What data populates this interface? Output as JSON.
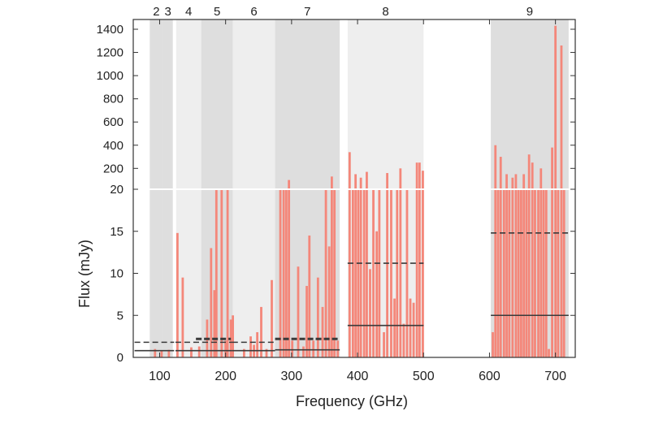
{
  "chart_data": {
    "type": "bar",
    "xlabel": "Frequency (GHz)",
    "ylabel": "Flux (mJy)",
    "x_ticks": [
      100,
      200,
      300,
      400,
      500,
      600,
      700
    ],
    "xlim": [
      60,
      730
    ],
    "y_axis": {
      "scale": "broken-linear",
      "lower_ticks": [
        0,
        5,
        10,
        15,
        20
      ],
      "upper_ticks": [
        200,
        400,
        600,
        800,
        1000,
        1200,
        1400
      ],
      "break_value": 20,
      "upper_range": [
        20,
        1450
      ]
    },
    "bands": [
      {
        "label": "2",
        "range": [
          85,
          105
        ],
        "shade": "dark"
      },
      {
        "label": "3",
        "range": [
          105,
          120
        ],
        "shade": "dark"
      },
      {
        "label": "4",
        "range": [
          125,
          163
        ],
        "shade": "light"
      },
      {
        "label": "5",
        "range": [
          163,
          211
        ],
        "shade": "dark"
      },
      {
        "label": "6",
        "range": [
          211,
          275
        ],
        "shade": "light"
      },
      {
        "label": "7",
        "range": [
          275,
          373
        ],
        "shade": "dark"
      },
      {
        "label": "8",
        "range": [
          385,
          500
        ],
        "shade": "light"
      },
      {
        "label": "9",
        "range": [
          602,
          720
        ],
        "shade": "dark"
      }
    ],
    "grid": false,
    "bar_color": "#f4877a",
    "band_colors": {
      "dark": "#dedede",
      "light": "#eeeeee"
    },
    "line_color": "#3a3a3a",
    "lines": [
      {
        "range": [
          62,
          122
        ],
        "value": 0.8,
        "style": "solid"
      },
      {
        "range": [
          62,
          122
        ],
        "value": 1.8,
        "style": "dashed"
      },
      {
        "range": [
          124,
          210
        ],
        "value": 0.8,
        "style": "solid"
      },
      {
        "range": [
          124,
          210
        ],
        "value": 1.8,
        "style": "dashed"
      },
      {
        "range": [
          155,
          208
        ],
        "value": 2.2,
        "style": "dashed-thick"
      },
      {
        "range": [
          210,
          275
        ],
        "value": 0.8,
        "style": "solid"
      },
      {
        "range": [
          210,
          275
        ],
        "value": 1.8,
        "style": "dashed"
      },
      {
        "range": [
          275,
          373
        ],
        "value": 0.9,
        "style": "solid"
      },
      {
        "range": [
          275,
          373
        ],
        "value": 2.2,
        "style": "dashed-thick"
      },
      {
        "range": [
          385,
          500
        ],
        "value": 3.8,
        "style": "solid"
      },
      {
        "range": [
          385,
          500
        ],
        "value": 11.2,
        "style": "dashed"
      },
      {
        "range": [
          602,
          720
        ],
        "value": 5.0,
        "style": "solid"
      },
      {
        "range": [
          602,
          720
        ],
        "value": 14.8,
        "style": "dashed"
      }
    ],
    "bars": [
      {
        "x": 93,
        "value": 1.0
      },
      {
        "x": 103,
        "value": 0.8
      },
      {
        "x": 114,
        "value": 0.9
      },
      {
        "x": 127,
        "value": 14.8
      },
      {
        "x": 135,
        "value": 9.5
      },
      {
        "x": 148,
        "value": 1.2
      },
      {
        "x": 160,
        "value": 1.3
      },
      {
        "x": 172,
        "value": 4.5
      },
      {
        "x": 178,
        "value": 13.0
      },
      {
        "x": 183,
        "value": 8.0
      },
      {
        "x": 186,
        "value": 20.0
      },
      {
        "x": 194,
        "value": 20.0
      },
      {
        "x": 200,
        "value": 2.0
      },
      {
        "x": 203,
        "value": 20.0
      },
      {
        "x": 208,
        "value": 4.5
      },
      {
        "x": 211,
        "value": 5.0
      },
      {
        "x": 228,
        "value": 1.0
      },
      {
        "x": 238,
        "value": 2.5
      },
      {
        "x": 243,
        "value": 1.5
      },
      {
        "x": 248,
        "value": 3.0
      },
      {
        "x": 254,
        "value": 6.0
      },
      {
        "x": 262,
        "value": 1.0
      },
      {
        "x": 270,
        "value": 9.2
      },
      {
        "x": 283,
        "value": 20.0
      },
      {
        "x": 288,
        "value": 20.0
      },
      {
        "x": 292,
        "value": 20.0
      },
      {
        "x": 296,
        "value": 100
      },
      {
        "x": 301,
        "value": 2.0
      },
      {
        "x": 310,
        "value": 10.8
      },
      {
        "x": 318,
        "value": 1.3
      },
      {
        "x": 323,
        "value": 8.5
      },
      {
        "x": 327,
        "value": 14.5
      },
      {
        "x": 333,
        "value": 2.0
      },
      {
        "x": 340,
        "value": 9.5
      },
      {
        "x": 347,
        "value": 6.0
      },
      {
        "x": 352,
        "value": 20.0
      },
      {
        "x": 357,
        "value": 13.2
      },
      {
        "x": 361,
        "value": 130
      },
      {
        "x": 365,
        "value": 20.0
      },
      {
        "x": 370,
        "value": 2.0
      },
      {
        "x": 388,
        "value": 340
      },
      {
        "x": 393,
        "value": 20.0
      },
      {
        "x": 397,
        "value": 150
      },
      {
        "x": 401,
        "value": 20.0
      },
      {
        "x": 405,
        "value": 120
      },
      {
        "x": 410,
        "value": 20.0
      },
      {
        "x": 414,
        "value": 170
      },
      {
        "x": 419,
        "value": 10.5
      },
      {
        "x": 424,
        "value": 20.0
      },
      {
        "x": 429,
        "value": 15.0
      },
      {
        "x": 433,
        "value": 20.0
      },
      {
        "x": 440,
        "value": 3.0
      },
      {
        "x": 445,
        "value": 160
      },
      {
        "x": 451,
        "value": 20.0
      },
      {
        "x": 456,
        "value": 7.0
      },
      {
        "x": 460,
        "value": 20.0
      },
      {
        "x": 465,
        "value": 200
      },
      {
        "x": 470,
        "value": 4.0
      },
      {
        "x": 475,
        "value": 20.0
      },
      {
        "x": 480,
        "value": 7.0
      },
      {
        "x": 485,
        "value": 6.5
      },
      {
        "x": 490,
        "value": 250
      },
      {
        "x": 494,
        "value": 250
      },
      {
        "x": 499,
        "value": 180
      },
      {
        "x": 605,
        "value": 3.0
      },
      {
        "x": 609,
        "value": 400
      },
      {
        "x": 613,
        "value": 20.0
      },
      {
        "x": 617,
        "value": 300
      },
      {
        "x": 622,
        "value": 20.0
      },
      {
        "x": 626,
        "value": 150
      },
      {
        "x": 630,
        "value": 20.0
      },
      {
        "x": 635,
        "value": 120
      },
      {
        "x": 640,
        "value": 150
      },
      {
        "x": 644,
        "value": 20.0
      },
      {
        "x": 648,
        "value": 20.0
      },
      {
        "x": 652,
        "value": 150
      },
      {
        "x": 656,
        "value": 20.0
      },
      {
        "x": 660,
        "value": 320
      },
      {
        "x": 665,
        "value": 250
      },
      {
        "x": 669,
        "value": 20.0
      },
      {
        "x": 674,
        "value": 20.0
      },
      {
        "x": 678,
        "value": 200
      },
      {
        "x": 682,
        "value": 20.0
      },
      {
        "x": 686,
        "value": 20.0
      },
      {
        "x": 690,
        "value": 1.0
      },
      {
        "x": 695,
        "value": 380
      },
      {
        "x": 700,
        "value": 1430
      },
      {
        "x": 704,
        "value": 20.0
      },
      {
        "x": 709,
        "value": 1260
      },
      {
        "x": 713,
        "value": 20.0
      }
    ]
  }
}
